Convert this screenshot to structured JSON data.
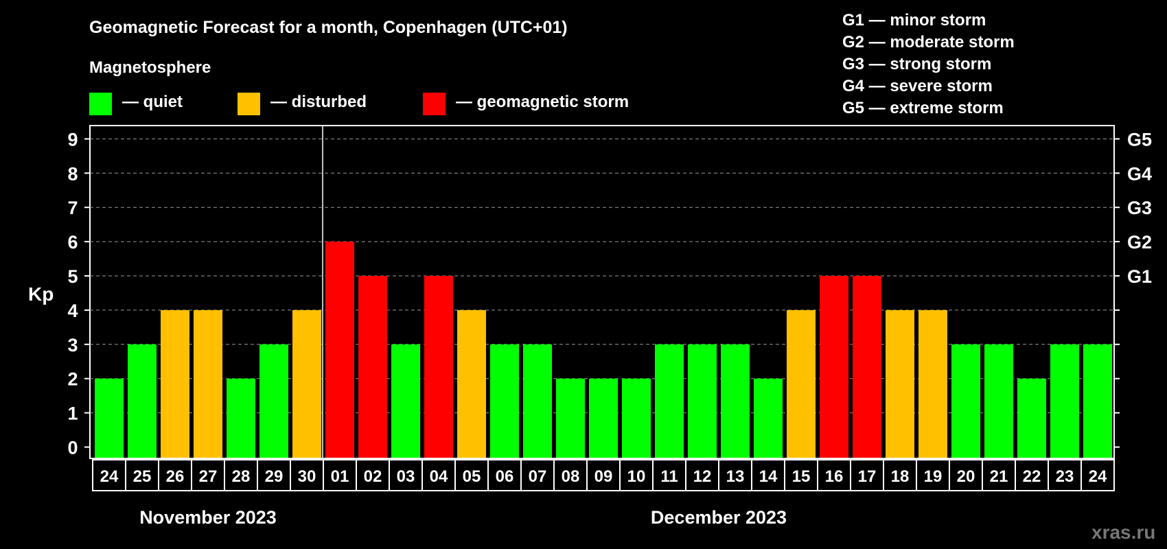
{
  "chart_data": {
    "type": "bar",
    "title": "Geomagnetic Forecast for a month, Copenhagen (UTC+01)",
    "ylabel": "Kp",
    "ylim": [
      0,
      9
    ],
    "yticks": [
      "0",
      "1",
      "2",
      "3",
      "4",
      "5",
      "6",
      "7",
      "8",
      "9"
    ],
    "categories": [
      "24",
      "25",
      "26",
      "27",
      "28",
      "29",
      "30",
      "01",
      "02",
      "03",
      "04",
      "05",
      "06",
      "07",
      "08",
      "09",
      "10",
      "11",
      "12",
      "13",
      "14",
      "15",
      "16",
      "17",
      "18",
      "19",
      "20",
      "21",
      "22",
      "23",
      "24"
    ],
    "values": [
      2,
      3,
      4,
      4,
      2,
      3,
      4,
      6,
      5,
      3,
      5,
      4,
      3,
      3,
      2,
      2,
      2,
      3,
      3,
      3,
      2,
      4,
      5,
      5,
      4,
      4,
      3,
      3,
      2,
      3,
      3
    ],
    "months": [
      {
        "label": "November 2023",
        "start": 0,
        "count": 7
      },
      {
        "label": "December 2023",
        "start": 7,
        "count": 24
      }
    ],
    "right_axis": [
      {
        "kp": 5,
        "label": "G1"
      },
      {
        "kp": 6,
        "label": "G2"
      },
      {
        "kp": 7,
        "label": "G3"
      },
      {
        "kp": 8,
        "label": "G4"
      },
      {
        "kp": 9,
        "label": "G5"
      }
    ],
    "grid": true
  },
  "legend": {
    "heading": "Magnetosphere",
    "items": [
      {
        "label": "— quiet",
        "color": "#00ff00"
      },
      {
        "label": "— disturbed",
        "color": "#ffc000"
      },
      {
        "label": "— geomagnetic storm",
        "color": "#ff0000"
      }
    ]
  },
  "storm_scale": [
    "G1 — minor storm",
    "G2 — moderate storm",
    "G3 — strong storm",
    "G4 — severe storm",
    "G5 — extreme storm"
  ],
  "watermark": "xras.ru"
}
